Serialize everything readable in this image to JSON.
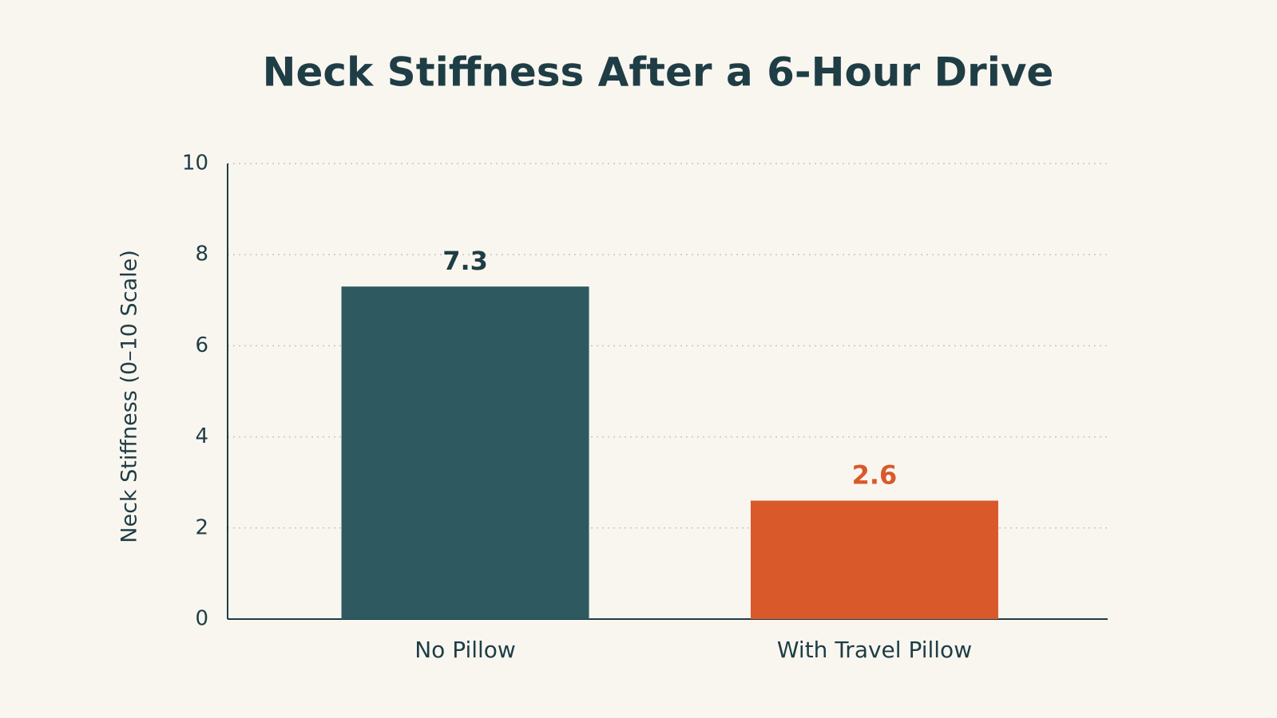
{
  "chart_data": {
    "type": "bar",
    "title": "Neck Stiffness After a 6-Hour Drive",
    "y_label": "Neck Stiffness (0–10 Scale)",
    "categories": [
      "No Pillow",
      "With Travel Pillow"
    ],
    "values": [
      7.3,
      2.6
    ],
    "colors": [
      "#2f5961",
      "#d9592b"
    ],
    "ylim": [
      0,
      10
    ],
    "yticks": [
      0,
      2,
      4,
      6,
      8,
      10
    ],
    "grid": true
  }
}
